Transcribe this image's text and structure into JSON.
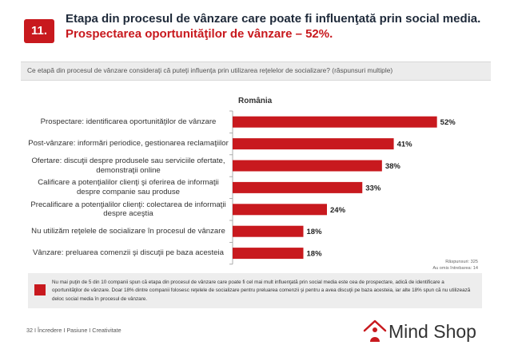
{
  "slide": {
    "number": "11.",
    "title_main": "Etapa din procesul de vânzare care poate fi influenţată prin social media. ",
    "title_highlight": "Prospectarea oportunităţilor de vânzare – 52%."
  },
  "question": "Ce etapă din procesul de vânzare consideraţi că puteţi influenţa prin utilizarea reţelelor de socializare? (răspunsuri multiple)",
  "chart_data": {
    "type": "bar",
    "orientation": "horizontal",
    "title": "România",
    "categories": [
      "Prospectare: identificarea oportunităţilor de vânzare",
      "Post-vânzare: informări periodice, gestionarea reclamaţiilor",
      "Ofertare: discuţii despre produsele sau serviciile ofertate, demonstraţii online",
      "Calificare a potenţialilor clienţi şi oferirea de informaţii despre companie sau produse",
      "Precalificare a potenţialilor clienţi: colectarea de informaţii despre aceştia",
      "Nu utilizăm reţelele de socializare în procesul de vânzare",
      "Vânzare: preluarea comenzii şi discuţii pe baza acesteia"
    ],
    "values": [
      52,
      41,
      38,
      33,
      24,
      18,
      18
    ],
    "value_labels": [
      "52%",
      "41%",
      "38%",
      "33%",
      "24%",
      "18%",
      "18%"
    ],
    "unit": "%",
    "xlim": [
      0,
      60
    ],
    "bar_color": "#c8191e"
  },
  "respondents": {
    "line1": "Răspunsuri: 325",
    "line2": "Au omis întrebarea: 14"
  },
  "footnote": "Nu mai puţin de 5 din 10 companii spun că etapa din procesul de vânzare care poate fi cel mai mult influenţată prin social media este cea de prospectare, adică de identificare a oportunităţilor de vânzare. Doar 18% dintre companii folosesc reţelele de socializare pentru preluarea comenzii şi pentru a avea discuţii pe baza acesteia, iar alte 18% spun că nu utilizează deloc social media în procesul de vânzare.",
  "footer": "32 I Încredere I Pasiune I Creativitate",
  "logo_text": "Mind Shop"
}
